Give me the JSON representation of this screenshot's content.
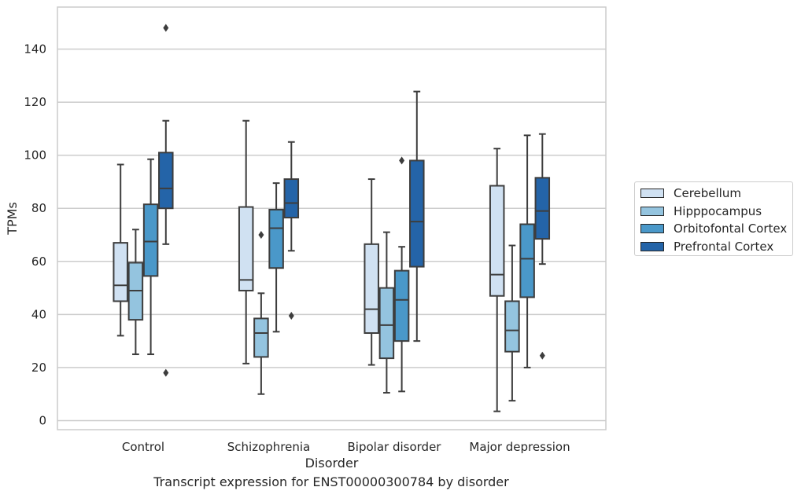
{
  "chart_data": {
    "type": "box",
    "xlabel": "Disorder",
    "ylabel": "TPMs",
    "caption": "Transcript expression for ENST00000300784 by disorder",
    "ylim": [
      -4,
      155
    ],
    "yticks": [
      0,
      20,
      40,
      60,
      80,
      100,
      120,
      140
    ],
    "grid": "horizontal",
    "legend_position": "right",
    "categories": [
      "Control",
      "Schizophrenia",
      "Bipolar disorder",
      "Major depression"
    ],
    "series": [
      {
        "name": "Cerebellum",
        "color": "#d0e1f2",
        "boxes": [
          {
            "whislo": 32,
            "q1": 45,
            "med": 51,
            "q3": 67,
            "whishi": 96.5,
            "fliers": []
          },
          {
            "whislo": 21.5,
            "q1": 49,
            "med": 53,
            "q3": 80.5,
            "whishi": 113,
            "fliers": []
          },
          {
            "whislo": 21,
            "q1": 33,
            "med": 42,
            "q3": 66.5,
            "whishi": 91,
            "fliers": []
          },
          {
            "whislo": 3.5,
            "q1": 47,
            "med": 55,
            "q3": 88.5,
            "whishi": 102.5,
            "fliers": []
          }
        ]
      },
      {
        "name": "Hipppocampus",
        "color": "#94c4df",
        "boxes": [
          {
            "whislo": 25,
            "q1": 38,
            "med": 49,
            "q3": 59.5,
            "whishi": 72,
            "fliers": []
          },
          {
            "whislo": 10,
            "q1": 24,
            "med": 33,
            "q3": 38.5,
            "whishi": 48,
            "fliers": [
              70
            ]
          },
          {
            "whislo": 10.5,
            "q1": 23.5,
            "med": 36,
            "q3": 50,
            "whishi": 71,
            "fliers": []
          },
          {
            "whislo": 7.5,
            "q1": 26,
            "med": 34,
            "q3": 45,
            "whishi": 66,
            "fliers": []
          }
        ]
      },
      {
        "name": "Orbitofontal Cortex",
        "color": "#4a98c9",
        "boxes": [
          {
            "whislo": 25,
            "q1": 54.5,
            "med": 67.5,
            "q3": 81.5,
            "whishi": 98.5,
            "fliers": []
          },
          {
            "whislo": 33.5,
            "q1": 57.5,
            "med": 72.5,
            "q3": 79.5,
            "whishi": 89.5,
            "fliers": []
          },
          {
            "whislo": 11,
            "q1": 30,
            "med": 45.5,
            "q3": 56.5,
            "whishi": 65.5,
            "fliers": [
              98
            ]
          },
          {
            "whislo": 20,
            "q1": 46.5,
            "med": 61,
            "q3": 74,
            "whishi": 107.5,
            "fliers": []
          }
        ]
      },
      {
        "name": "Prefrontal Cortex",
        "color": "#2464a8",
        "boxes": [
          {
            "whislo": 66.5,
            "q1": 80,
            "med": 87.5,
            "q3": 101,
            "whishi": 113,
            "fliers": [
              148,
              18
            ]
          },
          {
            "whislo": 64,
            "q1": 76.5,
            "med": 82,
            "q3": 91,
            "whishi": 105,
            "fliers": [
              39.5
            ]
          },
          {
            "whislo": 30,
            "q1": 58,
            "med": 75,
            "q3": 98,
            "whishi": 124,
            "fliers": []
          },
          {
            "whislo": 59,
            "q1": 68.5,
            "med": 79,
            "q3": 91.5,
            "whishi": 108,
            "fliers": [
              24.5
            ]
          }
        ]
      }
    ]
  }
}
